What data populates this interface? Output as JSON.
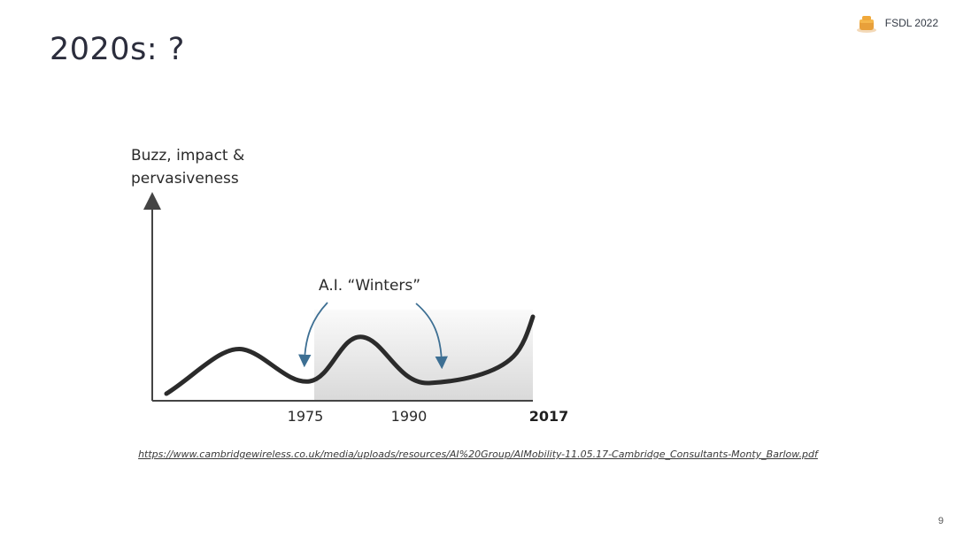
{
  "slide": {
    "title": "2020s: ?",
    "brand": "FSDL 2022",
    "page_number": "9",
    "source_link": "https://www.cambridgewireless.co.uk/media/uploads/resources/AI%20Group/AIMobility-11.05.17-Cambridge_Consultants-Monty_Barlow.pdf"
  },
  "figure": {
    "y_label_lines": [
      "Buzz, impact &",
      "pervasiveness"
    ],
    "annotation": "A.I. “Winters”",
    "ticks": [
      "1975",
      "1990",
      "2017"
    ],
    "colors": {
      "curve": "#2b2b2b",
      "arrow": "#3d6f93",
      "axis": "#444444",
      "shade": "#e2e2e2"
    }
  }
}
